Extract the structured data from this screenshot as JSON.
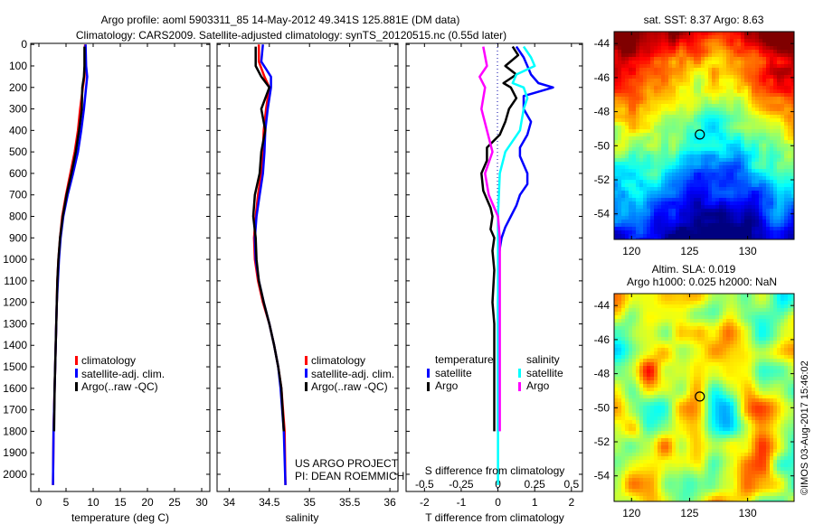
{
  "title": {
    "line1": "Argo profile: aoml 5903311_85 14-May-2012 49.341S 125.881E (DM data)",
    "line2": "Climatology: CARS2009. Satellite-adjusted climatology: synTS_20120515.nc (0.55d later)"
  },
  "project": {
    "line1": "US ARGO PROJECT",
    "line2": "PI: DEAN ROEMMICH"
  },
  "watermark": "©IMOS 03-Aug-2017 15:46:02",
  "colors": {
    "climatology": "#ff0000",
    "satellite": "#0000ff",
    "argo": "#000000",
    "sal_satellite": "#00ffff",
    "sal_argo": "#ff00ff"
  },
  "chart_data": [
    {
      "type": "line",
      "xlabel": "temperature (deg C)",
      "xlim": [
        -1.5,
        31.5
      ],
      "ylim": [
        2080,
        -5
      ],
      "xticks": [
        0,
        5,
        10,
        15,
        20,
        25,
        30
      ],
      "yticks": [
        0,
        100,
        200,
        300,
        400,
        500,
        600,
        700,
        800,
        900,
        1000,
        1100,
        1200,
        1300,
        1400,
        1500,
        1600,
        1700,
        1800,
        1900,
        2000
      ],
      "legend": [
        "climatology",
        "satellite-adj. clim.",
        "Argo(..raw -QC)"
      ],
      "series": [
        {
          "name": "climatology",
          "color": "#ff0000",
          "x": [
            8.5,
            8.5,
            8.4,
            8.1,
            7.6,
            7.2,
            6.6,
            5.8,
            5.0,
            4.3,
            3.9,
            3.6,
            3.4,
            3.3,
            3.2,
            3.1,
            3.0,
            2.9,
            2.8,
            2.7,
            2.6
          ],
          "y": [
            0,
            100,
            150,
            200,
            300,
            400,
            500,
            600,
            700,
            800,
            900,
            1000,
            1100,
            1200,
            1300,
            1400,
            1500,
            1600,
            1700,
            1800,
            2050
          ]
        },
        {
          "name": "satellite-adj. clim.",
          "color": "#0000ff",
          "x": [
            8.6,
            8.7,
            8.9,
            8.7,
            8.3,
            7.8,
            7.2,
            6.3,
            5.3,
            4.5,
            4.0,
            3.7,
            3.5,
            3.3,
            3.2,
            3.1,
            3.0,
            2.9,
            2.8,
            2.7,
            2.6
          ],
          "y": [
            0,
            100,
            150,
            200,
            300,
            400,
            500,
            600,
            700,
            800,
            900,
            1000,
            1100,
            1200,
            1300,
            1400,
            1500,
            1600,
            1700,
            1800,
            2050
          ]
        },
        {
          "name": "Argo(..raw -QC)",
          "color": "#000000",
          "x": [
            8.4,
            8.4,
            8.3,
            8.0,
            7.9,
            7.4,
            6.8,
            6.0,
            5.1,
            4.4,
            3.9,
            3.6,
            3.4,
            3.3,
            3.2,
            3.1,
            3.0,
            2.9,
            2.8
          ],
          "y": [
            10,
            100,
            150,
            200,
            300,
            400,
            500,
            600,
            700,
            800,
            900,
            1000,
            1100,
            1200,
            1300,
            1400,
            1500,
            1600,
            1800
          ]
        }
      ]
    },
    {
      "type": "line",
      "xlabel": "salinity",
      "xlim": [
        33.85,
        36.1
      ],
      "ylim": [
        2080,
        -5
      ],
      "xticks": [
        34,
        34.5,
        35,
        35.5,
        36
      ],
      "xticklabels": [
        "34",
        "34.5",
        "35",
        "35.5",
        "36"
      ],
      "legend": [
        "climatology",
        "satellite-adj. clim.",
        "Argo(..raw -QC)"
      ],
      "series": [
        {
          "name": "climatology",
          "color": "#ff0000",
          "x": [
            34.37,
            34.37,
            34.44,
            34.5,
            34.46,
            34.43,
            34.42,
            34.4,
            34.36,
            34.33,
            34.31,
            34.32,
            34.36,
            34.42,
            34.5,
            34.56,
            34.61,
            34.65,
            34.67,
            34.69,
            34.7
          ],
          "y": [
            0,
            80,
            150,
            200,
            300,
            400,
            500,
            600,
            700,
            800,
            900,
            1000,
            1100,
            1200,
            1300,
            1400,
            1500,
            1600,
            1700,
            1800,
            2050
          ]
        },
        {
          "name": "satellite-adj. clim.",
          "color": "#0000ff",
          "x": [
            34.42,
            34.4,
            34.52,
            34.52,
            34.48,
            34.45,
            34.44,
            34.42,
            34.38,
            34.34,
            34.32,
            34.33,
            34.37,
            34.43,
            34.5,
            34.56,
            34.61,
            34.64,
            34.66,
            34.68,
            34.7
          ],
          "y": [
            0,
            80,
            150,
            200,
            300,
            400,
            500,
            600,
            700,
            800,
            900,
            1000,
            1100,
            1200,
            1300,
            1400,
            1500,
            1600,
            1700,
            1800,
            2050
          ]
        },
        {
          "name": "Argo(..raw -QC)",
          "color": "#000000",
          "x": [
            34.33,
            34.33,
            34.4,
            34.5,
            34.4,
            34.45,
            34.4,
            34.38,
            34.32,
            34.3,
            34.33,
            34.34,
            34.37,
            34.43,
            34.5,
            34.56,
            34.61,
            34.65,
            34.68
          ],
          "y": [
            10,
            100,
            150,
            200,
            300,
            400,
            500,
            600,
            700,
            800,
            900,
            1000,
            1100,
            1200,
            1300,
            1400,
            1500,
            1600,
            1800
          ]
        }
      ]
    },
    {
      "type": "line",
      "xlabel": "T difference from climatology",
      "xlabel2": "S difference from climatology",
      "xlim": [
        -2.5,
        2.3
      ],
      "ylim": [
        2080,
        -5
      ],
      "xticks": [
        -2,
        -1,
        0,
        1,
        2
      ],
      "xticks2": [
        -0.5,
        -0.25,
        0,
        0.25,
        0.5
      ],
      "xticklabels2": [
        "-0.5",
        "-0.25",
        "0",
        "0.25",
        "0.5"
      ],
      "legend_groups": [
        {
          "title": "temperature",
          "items": [
            "satellite",
            "Argo"
          ]
        },
        {
          "title": "salinity",
          "items": [
            "satellite",
            "Argo"
          ]
        }
      ],
      "series": [
        {
          "name": "satellite",
          "color": "#0000ff",
          "x": [
            0.5,
            0.7,
            0.8,
            0.9,
            1.1,
            1.5,
            0.7,
            0.7,
            0.9,
            0.8,
            0.6,
            0.6,
            0.7,
            0.8,
            0.8,
            0.6,
            0.5,
            0.35,
            0.2,
            0.1,
            0.05,
            0.02,
            0,
            0,
            0
          ],
          "y": [
            10,
            60,
            100,
            140,
            180,
            200,
            240,
            300,
            360,
            420,
            480,
            520,
            560,
            600,
            650,
            700,
            750,
            800,
            850,
            900,
            950,
            1000,
            1200,
            1600,
            1800
          ]
        },
        {
          "name": "Argo",
          "color": "#000000",
          "x": [
            0.4,
            0.55,
            0.2,
            0.5,
            0.15,
            0.35,
            0.5,
            0.3,
            0.2,
            0.05,
            -0.3,
            -0.3,
            -0.45,
            -0.4,
            -0.2,
            -0.15,
            -0.2,
            -0.1,
            -0.15,
            -0.1,
            -0.15,
            -0.1,
            -0.1,
            -0.1,
            -0.1
          ],
          "y": [
            10,
            50,
            100,
            140,
            180,
            200,
            250,
            300,
            360,
            420,
            480,
            540,
            600,
            680,
            760,
            800,
            860,
            900,
            960,
            1050,
            1200,
            1300,
            1500,
            1700,
            1800
          ]
        },
        {
          "name": "salinity satellite",
          "color": "#00ffff",
          "x": [
            0.7,
            0.9,
            1.0,
            0.5,
            0.4,
            0.7,
            0.8,
            0.7,
            0.6,
            0.2,
            0.05,
            0,
            0,
            0,
            0,
            0,
            0,
            0
          ],
          "y": [
            10,
            60,
            100,
            140,
            180,
            200,
            250,
            300,
            400,
            500,
            600,
            800,
            1000,
            1200,
            1400,
            1600,
            1800,
            2050
          ]
        },
        {
          "name": "salinity Argo",
          "color": "#ff00ff",
          "x": [
            -0.4,
            -0.3,
            -0.5,
            -0.35,
            -0.45,
            -0.3,
            -0.15,
            -0.35,
            -0.25,
            0,
            0.05,
            0.05,
            0.05,
            0.05,
            0.05,
            0.05
          ],
          "y": [
            10,
            100,
            150,
            200,
            300,
            400,
            500,
            600,
            700,
            800,
            900,
            1100,
            1300,
            1500,
            1700,
            1800
          ]
        }
      ]
    },
    {
      "type": "heatmap",
      "title": "sat. SST: 8.37  Argo: 8.63",
      "xlim": [
        118.5,
        134
      ],
      "ylim": [
        -55.5,
        -43.3
      ],
      "xticks": [
        120,
        125,
        130
      ],
      "yticks": [
        -44,
        -46,
        -48,
        -50,
        -52,
        -54
      ],
      "argo_position": {
        "lon": 125.88,
        "lat": -49.34
      }
    },
    {
      "type": "heatmap",
      "title_line1": "Altim. SLA: 0.019",
      "title_line2": "Argo h1000: 0.025 h2000: NaN",
      "xlim": [
        118.5,
        134
      ],
      "ylim": [
        -55.5,
        -43.3
      ],
      "xticks": [
        120,
        125,
        130
      ],
      "yticks": [
        -44,
        -46,
        -48,
        -50,
        -52,
        -54
      ],
      "argo_position": {
        "lon": 125.88,
        "lat": -49.34
      }
    }
  ]
}
